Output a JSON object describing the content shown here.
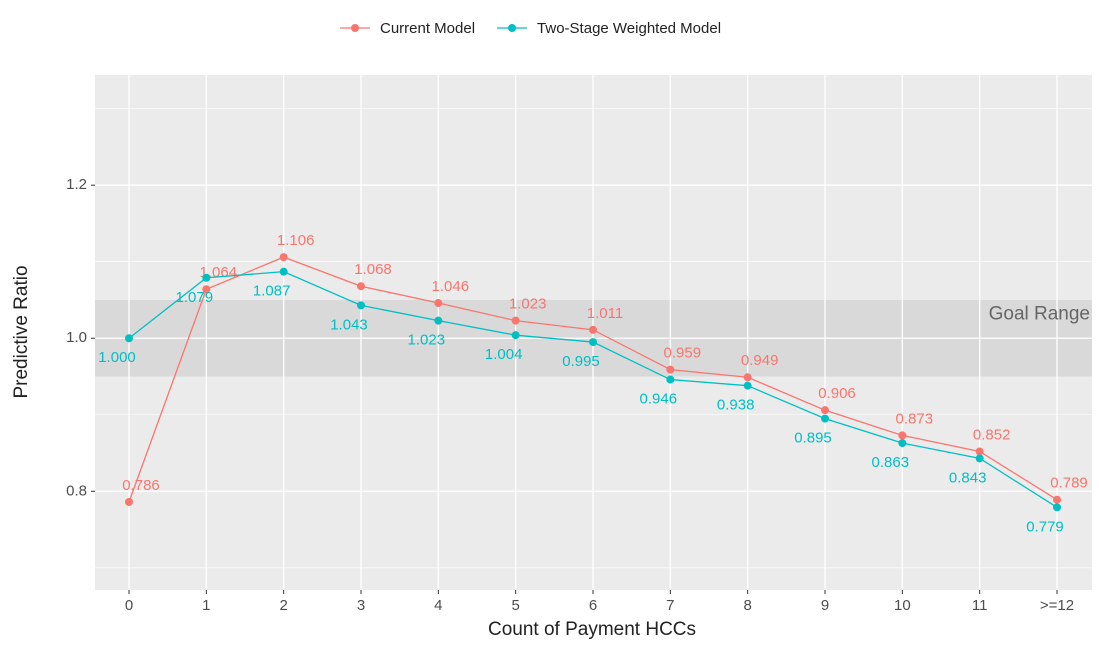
{
  "chart_data": {
    "type": "line",
    "x_label": "Count of Payment HCCs",
    "y_label": "Predictive Ratio",
    "categories": [
      "0",
      "1",
      "2",
      "3",
      "4",
      "5",
      "6",
      "7",
      "8",
      "9",
      "10",
      "11",
      ">=12"
    ],
    "series": [
      {
        "name": "Current Model",
        "color": "#f8766d",
        "values": [
          0.786,
          1.064,
          1.106,
          1.068,
          1.046,
          1.023,
          1.011,
          0.959,
          0.949,
          0.906,
          0.873,
          0.852,
          0.789
        ]
      },
      {
        "name": "Two-Stage Weighted Model",
        "color": "#00bfc4",
        "values": [
          1.0,
          1.079,
          1.087,
          1.043,
          1.023,
          1.004,
          0.995,
          0.946,
          0.938,
          0.895,
          0.863,
          0.843,
          0.779
        ]
      }
    ],
    "value_labels": [
      [
        "0.786",
        "1.064",
        "1.106",
        "1.068",
        "1.046",
        "1.023",
        "1.011",
        "0.959",
        "0.949",
        "0.906",
        "0.873",
        "0.852",
        "0.789"
      ],
      [
        "1.000",
        "1.079",
        "1.087",
        "1.043",
        "1.023",
        "1.004",
        "0.995",
        "0.946",
        "0.938",
        "0.895",
        "0.863",
        "0.843",
        "0.779"
      ]
    ],
    "ylim": [
      0.671,
      1.344
    ],
    "yticks": [
      {
        "value": 0.8,
        "label": "0.8"
      },
      {
        "value": 1.0,
        "label": "1.0"
      },
      {
        "value": 1.2,
        "label": "1.2"
      }
    ],
    "minor_yticks": [
      0.7,
      0.9,
      1.1,
      1.3
    ],
    "grid": true,
    "legend": "top",
    "annotations": [
      {
        "text": "Goal Range",
        "ymin": 0.95,
        "ymax": 1.05
      }
    ]
  }
}
